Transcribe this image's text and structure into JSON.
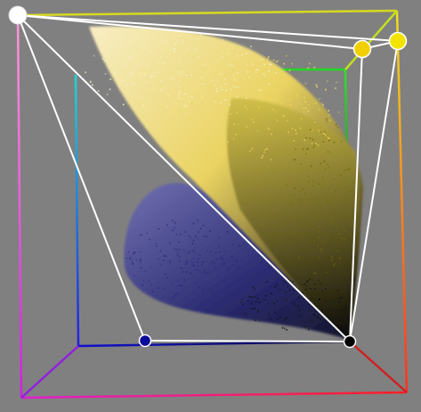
{
  "scene": {
    "background_color": "#808080",
    "point_cloud": {
      "yellow_cluster_color": "#f2d45a",
      "light_cluster_color": "#f7efc4",
      "dark_yellow_color": "#6e6a12",
      "blue_cluster_color": "#2a2a7a",
      "near_black_color": "#141414"
    },
    "handles": [
      {
        "id": "white",
        "color": "#ffffff"
      },
      {
        "id": "yellow-inner",
        "color": "#f2d000"
      },
      {
        "id": "yellow-outer",
        "color": "#f2e400"
      },
      {
        "id": "blue",
        "color": "#0a0a9a"
      },
      {
        "id": "black",
        "color": "#000000"
      }
    ],
    "edge_colors": {
      "outer_top": "#d8d820",
      "outer_left": "#f070c0",
      "outer_bottom": "#ff2060",
      "outer_right": "#ff8000",
      "inner_top": "#20d820",
      "inner_left": "#20c8d8",
      "inner_bottom": "#1010d0",
      "inner_right": "#20d820",
      "white_lines": "#ffffff"
    }
  }
}
